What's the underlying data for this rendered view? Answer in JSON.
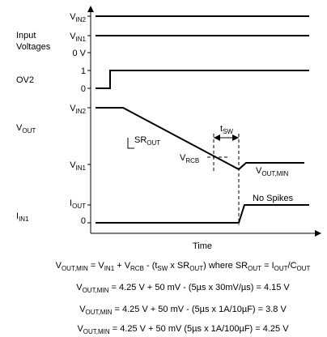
{
  "y_axis_labels": [
    [
      {
        "t": "V"
      },
      {
        "s": "IN2"
      }
    ],
    [
      {
        "t": "V"
      },
      {
        "s": "IN1"
      }
    ],
    [
      {
        "t": "0 V"
      }
    ],
    [
      {
        "t": "1"
      }
    ],
    [
      {
        "t": "0"
      }
    ],
    [
      {
        "t": "V"
      },
      {
        "s": "IN2"
      }
    ],
    [
      {
        "t": "V"
      },
      {
        "s": "IN1"
      }
    ],
    [
      {
        "t": "I"
      },
      {
        "s": "OUT"
      }
    ],
    [
      {
        "t": "0"
      }
    ]
  ],
  "group_labels": {
    "input": [
      "Input",
      "Voltages"
    ],
    "ov2": [
      {
        "t": "OV2"
      }
    ],
    "vout": [
      {
        "t": "V"
      },
      {
        "s": "OUT"
      }
    ],
    "iin1": [
      {
        "t": "I"
      },
      {
        "s": "IN1"
      }
    ]
  },
  "x_axis_label": "Time",
  "annotations": {
    "sr_out": [
      {
        "t": "SR"
      },
      {
        "s": "OUT"
      }
    ],
    "t_sw": [
      {
        "t": "t"
      },
      {
        "s": "SW"
      }
    ],
    "v_rcb": [
      {
        "t": "V"
      },
      {
        "s": "RCB"
      }
    ],
    "v_out_min": [
      {
        "t": "V"
      },
      {
        "s": "OUT,MIN"
      }
    ],
    "no_spikes": [
      {
        "t": "No Spikes"
      }
    ]
  },
  "equations": [
    [
      {
        "t": "V"
      },
      {
        "s": "OUT,MIN"
      },
      {
        "t": " = V"
      },
      {
        "s": "IN1"
      },
      {
        "t": " + V"
      },
      {
        "s": "RCB"
      },
      {
        "t": " - (t"
      },
      {
        "s": "SW"
      },
      {
        "t": " x SR"
      },
      {
        "s": "OUT"
      },
      {
        "t": ") where SR"
      },
      {
        "s": "OUT"
      },
      {
        "t": " = I"
      },
      {
        "s": "OUT"
      },
      {
        "t": "/C"
      },
      {
        "s": "OUT"
      }
    ],
    [
      {
        "t": "V"
      },
      {
        "s": "OUT,MIN"
      },
      {
        "t": " = 4.25 V + 50 mV - (5µs x 30mV/µs) = 4.15 V"
      }
    ],
    [
      {
        "t": "V"
      },
      {
        "s": "OUT,MIN"
      },
      {
        "t": " = 4.25 V + 50 mV - (5µs x 1A/10µF) = 3.8 V"
      }
    ],
    [
      {
        "t": "V"
      },
      {
        "s": "OUT,MIN"
      },
      {
        "t": " = 4.25 V + 50 mV (5µs x 1A/100µF) = 4.25 V"
      }
    ]
  ]
}
